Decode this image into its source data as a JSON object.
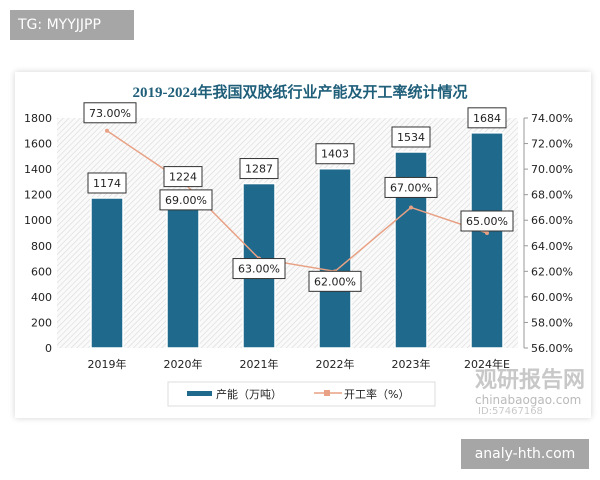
{
  "badges": {
    "top_left": "TG: MYYJJPP",
    "bottom_right": "analy-hth.com"
  },
  "watermark": {
    "logo_text": "观研报告网",
    "site": "chinabaogao.com",
    "id": "ID:57467168"
  },
  "chart_data": {
    "type": "bar+line",
    "title": "2019-2024年我国双胶纸行业产能及开工率统计情况",
    "categories": [
      "2019年",
      "2020年",
      "2021年",
      "2022年",
      "2023年",
      "2024年E"
    ],
    "series": [
      {
        "name": "产能（万吨）",
        "type": "bar",
        "axis": "left",
        "values": [
          1174,
          1224,
          1287,
          1403,
          1534,
          1684
        ],
        "labels": [
          "1174",
          "1224",
          "1287",
          "1403",
          "1534",
          "1684"
        ],
        "color": "#1f6a8c"
      },
      {
        "name": "开工率（%）",
        "type": "line",
        "axis": "right",
        "values": [
          73,
          69,
          63,
          62,
          67,
          65
        ],
        "labels": [
          "73.00%",
          "69.00%",
          "63.00%",
          "62.00%",
          "67.00%",
          "65.00%"
        ],
        "color": "#e8a184"
      }
    ],
    "left_axis": {
      "range": [
        0,
        1800
      ],
      "ticks": [
        "0",
        "200",
        "400",
        "600",
        "800",
        "1000",
        "1200",
        "1400",
        "1600",
        "1800"
      ]
    },
    "right_axis": {
      "range": [
        56,
        74
      ],
      "ticks": [
        "56.00%",
        "58.00%",
        "60.00%",
        "62.00%",
        "64.00%",
        "66.00%",
        "68.00%",
        "70.00%",
        "72.00%",
        "74.00%"
      ]
    },
    "legend": "bottom",
    "title_color": "#1f5f7a"
  }
}
